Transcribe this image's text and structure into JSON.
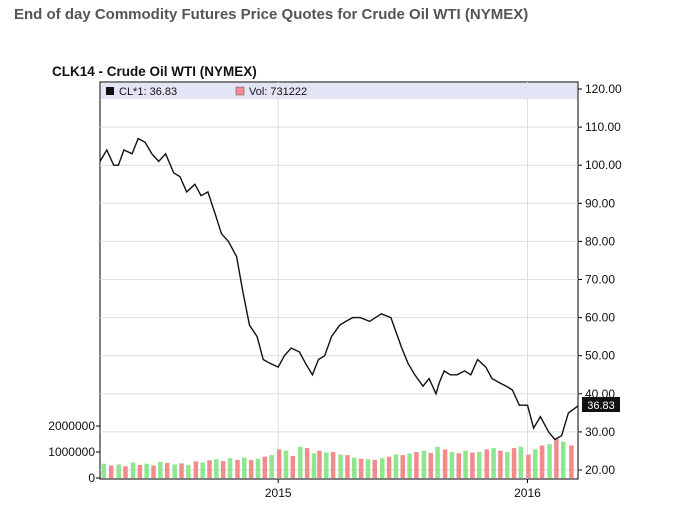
{
  "page_title": "End of day Commodity Futures Price Quotes for Crude Oil WTI (NYMEX)",
  "chart_data": {
    "type": "line",
    "title": "CLK14 - Crude Oil WTI (NYMEX)",
    "legend": {
      "price_label": "CL*1: 36.83",
      "volume_label": "Vol: 731222",
      "placement": "top"
    },
    "price_axis": {
      "side": "right",
      "ylim": [
        19,
        121
      ],
      "ticks": [
        120,
        110,
        100,
        90,
        80,
        70,
        60,
        50,
        40,
        30,
        20
      ],
      "tick_labels": [
        "120.00",
        "110.00",
        "100.00",
        "90.00",
        "80.00",
        "70.00",
        "60.00",
        "50.00",
        "40.00",
        "30.00",
        "20.00"
      ]
    },
    "volume_axis": {
      "side": "left",
      "ticks": [
        2000000,
        1000000,
        0
      ],
      "tick_labels": [
        "2000000",
        "1000000",
        "0"
      ]
    },
    "x_axis": {
      "range": [
        "2014-04-15",
        "2016-03-15"
      ],
      "ticks": [
        "2015-01-01",
        "2016-01-01"
      ],
      "tick_labels": [
        "2015",
        "2016"
      ]
    },
    "last_value_label": "36.83",
    "grid": true,
    "series": [
      {
        "name": "CL*1",
        "color": "#111111",
        "x": [
          "2014-04-15",
          "2014-04-25",
          "2014-05-05",
          "2014-05-12",
          "2014-05-20",
          "2014-06-01",
          "2014-06-10",
          "2014-06-20",
          "2014-06-30",
          "2014-07-10",
          "2014-07-20",
          "2014-08-01",
          "2014-08-10",
          "2014-08-20",
          "2014-09-01",
          "2014-09-10",
          "2014-09-20",
          "2014-10-01",
          "2014-10-10",
          "2014-10-20",
          "2014-11-01",
          "2014-11-10",
          "2014-11-20",
          "2014-12-01",
          "2014-12-10",
          "2014-12-20",
          "2015-01-01",
          "2015-01-10",
          "2015-01-20",
          "2015-02-01",
          "2015-02-10",
          "2015-02-20",
          "2015-03-01",
          "2015-03-10",
          "2015-03-20",
          "2015-04-01",
          "2015-04-10",
          "2015-04-20",
          "2015-05-01",
          "2015-05-15",
          "2015-06-01",
          "2015-06-15",
          "2015-07-01",
          "2015-07-10",
          "2015-07-20",
          "2015-08-01",
          "2015-08-10",
          "2015-08-20",
          "2015-08-25",
          "2015-09-01",
          "2015-09-10",
          "2015-09-20",
          "2015-10-01",
          "2015-10-10",
          "2015-10-20",
          "2015-11-01",
          "2015-11-10",
          "2015-11-20",
          "2015-12-01",
          "2015-12-10",
          "2015-12-20",
          "2016-01-01",
          "2016-01-10",
          "2016-01-20",
          "2016-02-01",
          "2016-02-10",
          "2016-02-20",
          "2016-03-01",
          "2016-03-15"
        ],
        "values": [
          101,
          104,
          100,
          100,
          104,
          103,
          107,
          106,
          103,
          101,
          103,
          98,
          97,
          93,
          95,
          92,
          93,
          87,
          82,
          80,
          76,
          67,
          58,
          55,
          49,
          48,
          47,
          50,
          52,
          51,
          48,
          45,
          49,
          50,
          55,
          58,
          59,
          60,
          60,
          59,
          61,
          60,
          52,
          48,
          45,
          42,
          44,
          40,
          43,
          46,
          45,
          45,
          46,
          45,
          49,
          47,
          44,
          43,
          42,
          41,
          37,
          37,
          31,
          34,
          30,
          28,
          29,
          35,
          36.83
        ]
      }
    ],
    "volume": {
      "name": "Vol",
      "x": [
        "2014-04-20",
        "2014-05-01",
        "2014-05-12",
        "2014-05-22",
        "2014-06-02",
        "2014-06-12",
        "2014-06-22",
        "2014-07-02",
        "2014-07-12",
        "2014-07-22",
        "2014-08-02",
        "2014-08-12",
        "2014-08-22",
        "2014-09-02",
        "2014-09-12",
        "2014-09-22",
        "2014-10-02",
        "2014-10-12",
        "2014-10-22",
        "2014-11-02",
        "2014-11-12",
        "2014-11-22",
        "2014-12-02",
        "2014-12-12",
        "2014-12-22",
        "2015-01-02",
        "2015-01-12",
        "2015-01-22",
        "2015-02-02",
        "2015-02-12",
        "2015-02-22",
        "2015-03-02",
        "2015-03-12",
        "2015-03-22",
        "2015-04-02",
        "2015-04-12",
        "2015-04-22",
        "2015-05-02",
        "2015-05-12",
        "2015-05-22",
        "2015-06-02",
        "2015-06-12",
        "2015-06-22",
        "2015-07-02",
        "2015-07-12",
        "2015-07-22",
        "2015-08-02",
        "2015-08-12",
        "2015-08-22",
        "2015-09-02",
        "2015-09-12",
        "2015-09-22",
        "2015-10-02",
        "2015-10-12",
        "2015-10-22",
        "2015-11-02",
        "2015-11-12",
        "2015-11-22",
        "2015-12-02",
        "2015-12-12",
        "2015-12-22",
        "2016-01-02",
        "2016-01-12",
        "2016-01-22",
        "2016-02-02",
        "2016-02-12",
        "2016-02-22",
        "2016-03-05"
      ],
      "values": [
        550000,
        480000,
        520000,
        450000,
        600000,
        500000,
        550000,
        480000,
        620000,
        580000,
        520000,
        560000,
        500000,
        640000,
        600000,
        680000,
        720000,
        650000,
        760000,
        700000,
        780000,
        690000,
        740000,
        820000,
        880000,
        1100000,
        1050000,
        850000,
        1200000,
        1150000,
        950000,
        1050000,
        980000,
        1000000,
        900000,
        880000,
        780000,
        740000,
        720000,
        700000,
        760000,
        820000,
        900000,
        880000,
        940000,
        1000000,
        1050000,
        960000,
        1200000,
        1100000,
        1000000,
        950000,
        1050000,
        980000,
        1000000,
        1100000,
        1150000,
        1050000,
        1000000,
        1150000,
        1200000,
        900000,
        1100000,
        1250000,
        1300000,
        1500000,
        1400000,
        1250000
      ],
      "colors_note": "bars alternate red (down) and green (up)"
    }
  },
  "colors": {
    "price_line": "#111111",
    "volume_up": "#8ee68e",
    "volume_down": "#f28b8b",
    "legend_bg": "#e4e4f7",
    "frame": "#000000",
    "grid": "#dddddd",
    "last_value_bg": "#111111"
  }
}
